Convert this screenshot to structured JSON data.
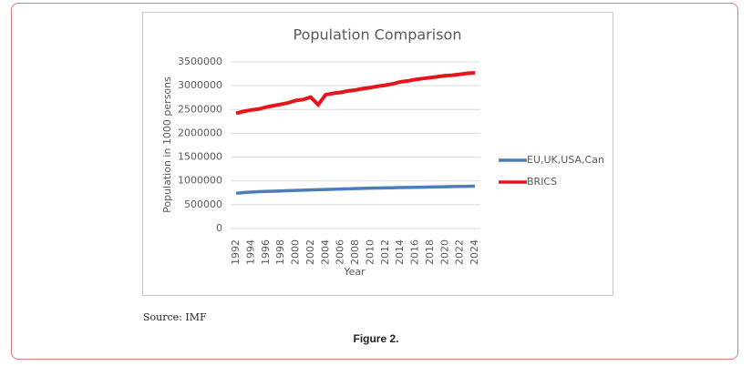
{
  "chart_data": {
    "type": "line",
    "title": "Population Comparison",
    "x_label": "Year",
    "y_label": "Population in 1000 persons",
    "x": [
      1992,
      1993,
      1994,
      1995,
      1996,
      1997,
      1998,
      1999,
      2000,
      2001,
      2002,
      2003,
      2004,
      2005,
      2006,
      2007,
      2008,
      2009,
      2010,
      2011,
      2012,
      2013,
      2014,
      2015,
      2016,
      2017,
      2018,
      2019,
      2020,
      2021,
      2022,
      2023,
      2024
    ],
    "xlim": [
      1992,
      2024
    ],
    "xticks": [
      1992,
      1994,
      1996,
      1998,
      2000,
      2002,
      2004,
      2006,
      2008,
      2010,
      2012,
      2014,
      2016,
      2018,
      2020,
      2022,
      2024
    ],
    "ylim": [
      0,
      3500000
    ],
    "yticks": [
      0,
      500000,
      1000000,
      1500000,
      2000000,
      2500000,
      3000000,
      3500000
    ],
    "grid": true,
    "legend": "right",
    "series": [
      {
        "name": "EU,UK,USA,Can",
        "color": "#4a7ebb",
        "values": [
          740000,
          755000,
          765000,
          775000,
          780000,
          785000,
          790000,
          795000,
          800000,
          805000,
          810000,
          815000,
          820000,
          825000,
          830000,
          835000,
          840000,
          845000,
          848000,
          851000,
          854000,
          857000,
          860000,
          863000,
          866000,
          869000,
          872000,
          875000,
          878000,
          881000,
          884000,
          887000,
          890000
        ]
      },
      {
        "name": "BRICS",
        "color": "#e8141c",
        "values": [
          2420000,
          2460000,
          2490000,
          2510000,
          2550000,
          2580000,
          2610000,
          2640000,
          2690000,
          2710000,
          2760000,
          2600000,
          2810000,
          2840000,
          2860000,
          2890000,
          2910000,
          2940000,
          2960000,
          2990000,
          3010000,
          3040000,
          3080000,
          3100000,
          3130000,
          3150000,
          3170000,
          3190000,
          3210000,
          3220000,
          3240000,
          3260000,
          3270000
        ]
      }
    ]
  },
  "source": "Source: IMF",
  "caption": "Figure 2."
}
